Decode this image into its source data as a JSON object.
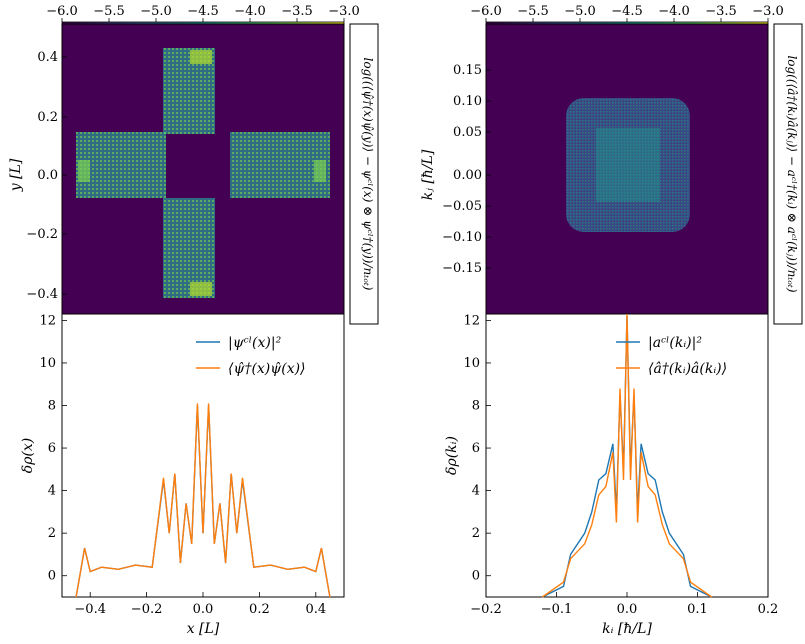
{
  "colorbar": {
    "ticks": [
      "−6.0",
      "−5.5",
      "−5.0",
      "−4.5",
      "−4.0",
      "−3.5",
      "−3.0"
    ],
    "range": [
      -6.0,
      -3.0
    ]
  },
  "heatmap_left": {
    "ylabel": "y [L]",
    "yticks": [
      "0.4",
      "0.2",
      "0.0",
      "−0.2",
      "−0.4"
    ],
    "cbar_label": "log((⟨ψ̂†(x)ψ̂(y)⟩ − ψᶜˡ(x) ⊗ ψᶜˡ†(y))/nₜₒₜ)"
  },
  "heatmap_right": {
    "ylabel": "kⱼ [ħ/L]",
    "yticks": [
      "0.15",
      "0.10",
      "0.05",
      "0.00",
      "−0.05",
      "−0.10",
      "−0.15"
    ],
    "cbar_label": "log((⟨â†(kᵢ)â(kⱼ)⟩ − aᶜˡ†(kᵢ) ⊗ aᶜˡ(kⱼ))/nₜₒₜ)"
  },
  "chart_data": [
    {
      "type": "line",
      "xlabel": "x [L]",
      "ylabel": "δρ(x)",
      "xlim": [
        -0.5,
        0.5
      ],
      "ylim": [
        -1,
        12.3
      ],
      "xticks": [
        "−0.4",
        "−0.2",
        "0.0",
        "0.2",
        "0.4"
      ],
      "xtick_values": [
        -0.4,
        -0.2,
        0.0,
        0.2,
        0.4
      ],
      "yticks": [
        "0",
        "2",
        "4",
        "6",
        "8",
        "10",
        "12"
      ],
      "ytick_values": [
        0,
        2,
        4,
        6,
        8,
        10,
        12
      ],
      "legend": [
        "|ψᶜˡ(x)|²",
        "⟨ψ̂†(x)ψ̂(x)⟩"
      ],
      "series": [
        {
          "name": "|ψᶜˡ(x)|²",
          "color": "#1f77b4",
          "x": [
            -0.45,
            -0.42,
            -0.4,
            -0.36,
            -0.3,
            -0.24,
            -0.18,
            -0.14,
            -0.12,
            -0.1,
            -0.08,
            -0.06,
            -0.04,
            -0.02,
            0.0,
            0.02,
            0.04,
            0.06,
            0.08,
            0.1,
            0.12,
            0.14,
            0.18,
            0.24,
            0.3,
            0.36,
            0.4,
            0.42,
            0.45
          ],
          "y": [
            -1,
            1.3,
            0.2,
            0.4,
            0.3,
            0.5,
            0.4,
            4.5,
            2.0,
            4.8,
            0.6,
            3.4,
            1.5,
            8.0,
            2.0,
            8.0,
            1.5,
            3.4,
            0.6,
            4.8,
            2.0,
            4.5,
            0.4,
            0.5,
            0.3,
            0.4,
            0.2,
            1.3,
            -1
          ]
        },
        {
          "name": "⟨ψ̂†(x)ψ̂(x)⟩",
          "color": "#ff7f0e",
          "x": [
            -0.45,
            -0.42,
            -0.4,
            -0.36,
            -0.3,
            -0.24,
            -0.18,
            -0.14,
            -0.12,
            -0.1,
            -0.08,
            -0.06,
            -0.04,
            -0.02,
            0.0,
            0.02,
            0.04,
            0.06,
            0.08,
            0.1,
            0.12,
            0.14,
            0.18,
            0.24,
            0.3,
            0.36,
            0.4,
            0.42,
            0.45
          ],
          "y": [
            -1,
            1.3,
            0.2,
            0.4,
            0.3,
            0.5,
            0.4,
            4.6,
            2.0,
            4.8,
            0.6,
            3.4,
            1.5,
            8.1,
            2.0,
            8.1,
            1.5,
            3.4,
            0.6,
            4.8,
            2.0,
            4.6,
            0.4,
            0.5,
            0.3,
            0.4,
            0.2,
            1.3,
            -1
          ]
        }
      ]
    },
    {
      "type": "line",
      "xlabel": "kᵢ [ħ/L]",
      "ylabel": "δρ(kᵢ)",
      "xlim": [
        -0.2,
        0.2
      ],
      "ylim": [
        -1,
        12.3
      ],
      "xticks": [
        "−0.2",
        "−0.1",
        "0.0",
        "0.1",
        "0.2"
      ],
      "xtick_values": [
        -0.2,
        -0.1,
        0.0,
        0.1,
        0.2
      ],
      "yticks": [
        "0",
        "2",
        "4",
        "6",
        "8",
        "10",
        "12"
      ],
      "ytick_values": [
        0,
        2,
        4,
        6,
        8,
        10,
        12
      ],
      "legend": [
        "|aᶜˡ(kᵢ)|²",
        "⟨â†(kᵢ)â(kᵢ)⟩"
      ],
      "series": [
        {
          "name": "|aᶜˡ(kᵢ)|²",
          "color": "#1f77b4",
          "x": [
            -0.12,
            -0.09,
            -0.08,
            -0.06,
            -0.05,
            -0.04,
            -0.03,
            -0.02,
            -0.015,
            -0.01,
            -0.005,
            0.0,
            0.005,
            0.01,
            0.015,
            0.02,
            0.03,
            0.04,
            0.05,
            0.06,
            0.08,
            0.09,
            0.12
          ],
          "y": [
            -1,
            -0.5,
            1.0,
            2.0,
            3.0,
            4.5,
            4.8,
            6.2,
            3.0,
            8.5,
            5.0,
            12.2,
            5.0,
            8.5,
            3.0,
            6.2,
            4.8,
            4.5,
            3.0,
            2.0,
            1.0,
            -0.5,
            -1
          ]
        },
        {
          "name": "⟨â†(kᵢ)â(kᵢ)⟩",
          "color": "#ff7f0e",
          "x": [
            -0.12,
            -0.09,
            -0.08,
            -0.06,
            -0.05,
            -0.04,
            -0.03,
            -0.02,
            -0.015,
            -0.01,
            -0.005,
            0.0,
            0.005,
            0.01,
            0.015,
            0.02,
            0.03,
            0.04,
            0.05,
            0.06,
            0.08,
            0.09,
            0.12
          ],
          "y": [
            -1,
            -0.3,
            0.8,
            1.5,
            2.4,
            3.8,
            4.2,
            5.8,
            2.5,
            8.8,
            4.5,
            12.3,
            4.5,
            8.8,
            2.5,
            5.8,
            4.2,
            3.8,
            2.4,
            1.5,
            0.8,
            -0.3,
            -1
          ]
        }
      ]
    }
  ]
}
